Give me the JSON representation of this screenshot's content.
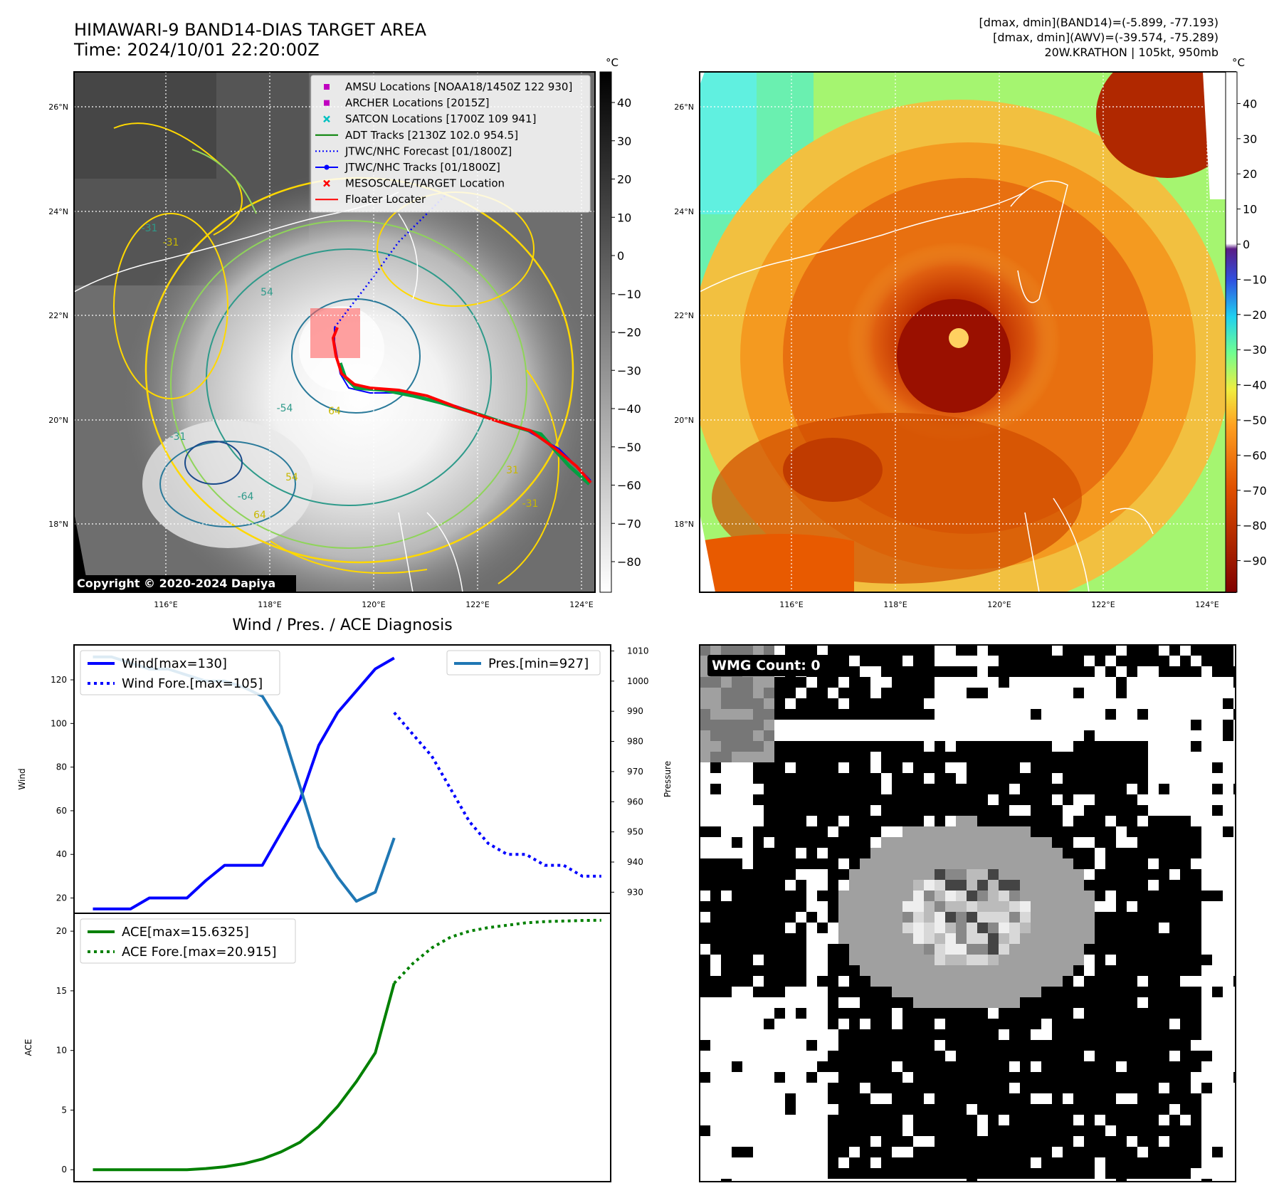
{
  "header": {
    "title_line1": "HIMAWARI-9 BAND14-DIAS TARGET AREA",
    "title_line2": "Time: 2024/10/01 22:20:00Z",
    "info_line1": "[dmax, dmin](BAND14)=(-5.899, -77.193)",
    "info_line2": "[dmax, dmin](AWV)=(-39.574, -75.289)",
    "info_line3": "20W.KRATHON | 105kt, 950mb"
  },
  "map_left": {
    "unit": "°C",
    "colorbar_ticks": [
      40,
      30,
      20,
      10,
      0,
      -10,
      -20,
      -30,
      -40,
      -50,
      -60,
      -70,
      -80
    ],
    "colorbar_range": [
      -88,
      48
    ],
    "lat_labels": [
      "26°N",
      "24°N",
      "22°N",
      "20°N",
      "18°N"
    ],
    "lon_labels": [
      "116°E",
      "118°E",
      "120°E",
      "122°E",
      "124°E"
    ],
    "copyright": "Copyright © 2020-2024 Dapiya",
    "contour_labels": [
      "-31",
      "54",
      "64",
      "-64",
      "54",
      "-54",
      "64",
      "-31",
      "-31",
      "-31",
      "31"
    ],
    "legend": [
      {
        "label": "AMSU Locations [NOAA18/1450Z 122 930]",
        "marker": "square",
        "color": "#c000c0"
      },
      {
        "label": "ARCHER Locations [2015Z]",
        "marker": "square",
        "color": "#c000c0"
      },
      {
        "label": "SATCON Locations [1700Z 109 941]",
        "marker": "x",
        "color": "#00c0c0"
      },
      {
        "label": "ADT Tracks [2130Z 102.0 954.5]",
        "marker": "line",
        "color": "#008000"
      },
      {
        "label": "JTWC/NHC Forecast [01/1800Z]",
        "marker": "dotted",
        "color": "#0000ff"
      },
      {
        "label": "JTWC/NHC Tracks [01/1800Z]",
        "marker": "line-dot",
        "color": "#0000ff"
      },
      {
        "label": "MESOSCALE/TARGET Location",
        "marker": "x",
        "color": "#ff0000"
      },
      {
        "label": "Floater Locater",
        "marker": "line",
        "color": "#ff0000"
      }
    ]
  },
  "map_right": {
    "unit": "°C",
    "colorbar_ticks": [
      40,
      30,
      20,
      10,
      0,
      -10,
      -20,
      -30,
      -40,
      -50,
      -60,
      -70,
      -80,
      -90
    ],
    "colorbar_range": [
      -99,
      49
    ],
    "lat_labels": [
      "26°N",
      "24°N",
      "22°N",
      "20°N",
      "18°N"
    ],
    "lon_labels": [
      "116°E",
      "118°E",
      "120°E",
      "122°E",
      "124°E"
    ]
  },
  "wmg": {
    "label": "WMG Count: 0"
  },
  "chart_data": [
    {
      "type": "line",
      "title": "Wind / Pres. / ACE Diagnosis",
      "ylabel": "Wind",
      "y2label": "Pressure",
      "ylim": [
        13,
        136
      ],
      "y2lim": [
        923,
        1012
      ],
      "xlim": [
        0,
        28.5
      ],
      "yticks": [
        20,
        40,
        60,
        80,
        100,
        120
      ],
      "y2ticks": [
        930,
        940,
        950,
        960,
        970,
        980,
        990,
        1000,
        1010
      ],
      "series": [
        {
          "name": "Wind[max=130]",
          "style": "solid",
          "color": "#0000ff",
          "x": [
            1,
            2,
            3,
            4,
            5,
            6,
            7,
            8,
            9,
            10,
            11,
            12,
            13,
            14,
            15,
            16,
            17
          ],
          "values": [
            15,
            15,
            15,
            20,
            20,
            20,
            28,
            35,
            35,
            35,
            50,
            65,
            90,
            105,
            115,
            125,
            130
          ]
        },
        {
          "name": "Wind Fore.[max=105]",
          "style": "dotted",
          "color": "#0000ff",
          "x": [
            17,
            18,
            19,
            20,
            21,
            22,
            23,
            24,
            25,
            26,
            27,
            28
          ],
          "values": [
            105,
            95,
            85,
            70,
            55,
            45,
            40,
            40,
            35,
            35,
            30,
            30
          ]
        },
        {
          "name": "Pres.[min=927]",
          "style": "solid",
          "color": "#1f77b4",
          "axis": "right",
          "x": [
            1,
            2,
            3,
            4,
            5,
            6,
            7,
            8,
            9,
            10,
            11,
            12,
            13,
            14,
            15,
            16,
            17
          ],
          "values": [
            1008,
            1008,
            1006,
            1004,
            1004,
            1002,
            1000,
            1000,
            998,
            995,
            985,
            965,
            945,
            935,
            927,
            930,
            948
          ]
        }
      ]
    },
    {
      "type": "line",
      "ylabel": "ACE",
      "ylim": [
        -1,
        21.5
      ],
      "xlim": [
        0,
        28.5
      ],
      "yticks": [
        0,
        5,
        10,
        15,
        20
      ],
      "series": [
        {
          "name": "ACE[max=15.6325]",
          "style": "solid",
          "color": "#008000",
          "x": [
            1,
            2,
            3,
            4,
            5,
            6,
            7,
            8,
            9,
            10,
            11,
            12,
            13,
            14,
            15,
            16,
            17
          ],
          "values": [
            0,
            0,
            0,
            0,
            0,
            0,
            0.1,
            0.25,
            0.5,
            0.9,
            1.5,
            2.3,
            3.6,
            5.3,
            7.4,
            9.8,
            15.6325
          ]
        },
        {
          "name": "ACE Fore.[max=20.915]",
          "style": "dotted",
          "color": "#008000",
          "x": [
            17,
            18,
            19,
            20,
            21,
            22,
            23,
            24,
            25,
            26,
            27,
            28
          ],
          "values": [
            15.6325,
            17.3,
            18.6,
            19.5,
            20.0,
            20.3,
            20.5,
            20.7,
            20.8,
            20.85,
            20.9,
            20.915
          ]
        }
      ]
    }
  ]
}
